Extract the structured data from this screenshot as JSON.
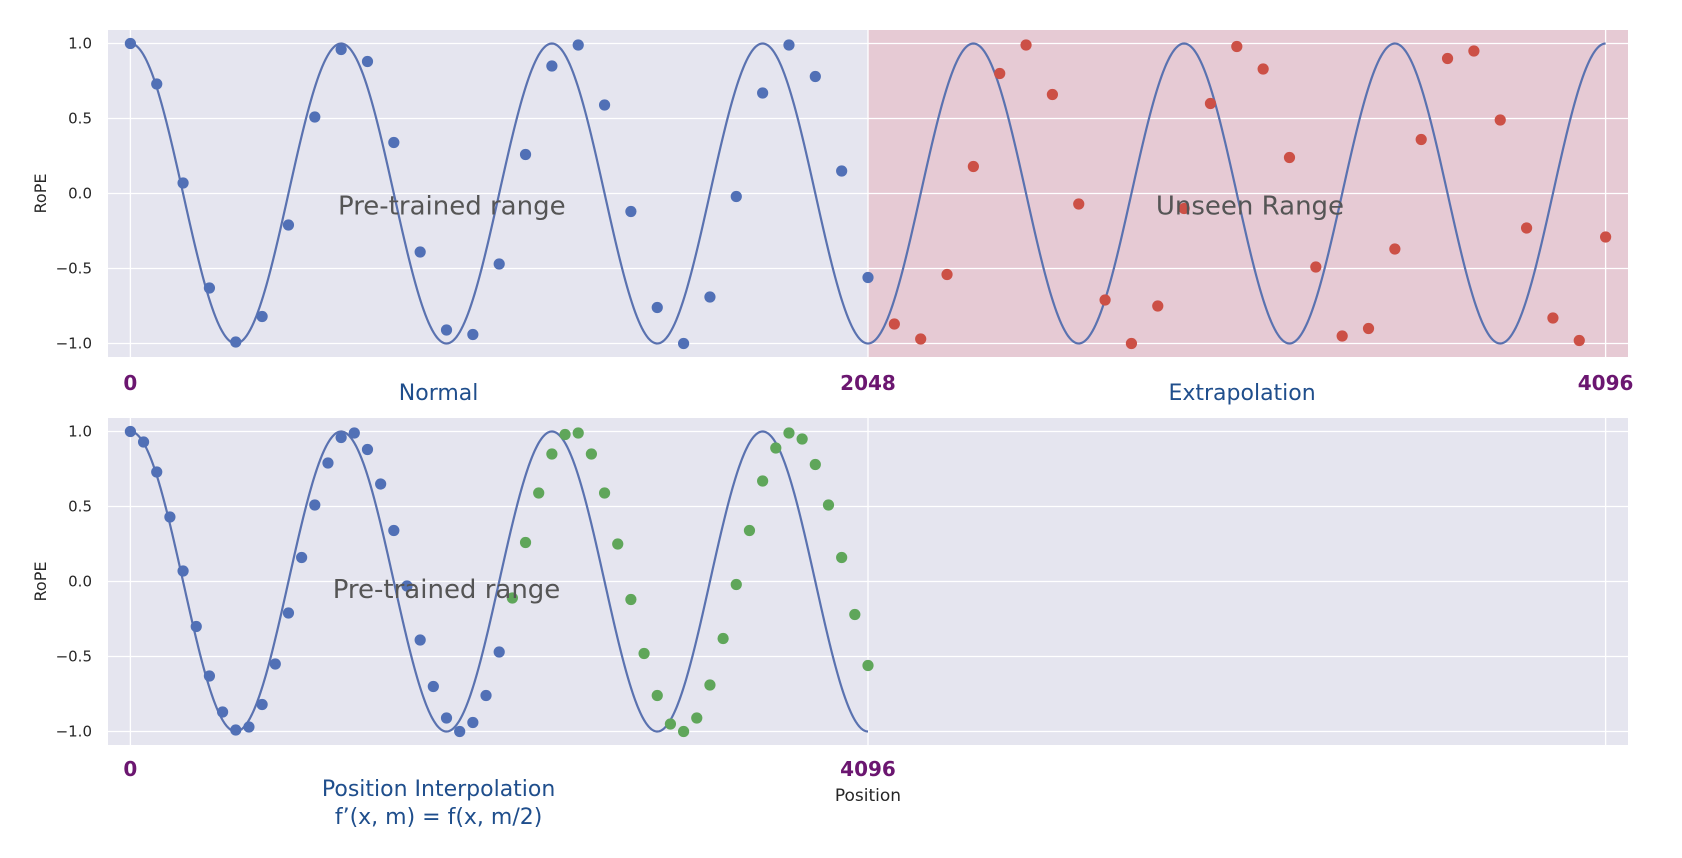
{
  "chart_data": [
    {
      "type": "scatter",
      "title": "",
      "xlabel": "",
      "ylabel": "RoPE",
      "xlim": [
        -0.85,
        56.85
      ],
      "ylim": [
        -1.09,
        1.09
      ],
      "yticks": [
        -1.0,
        -0.5,
        0.0,
        0.5,
        1.0
      ],
      "grid": true,
      "curve": {
        "function": "cos",
        "period": 8,
        "x_range": [
          0,
          56
        ]
      },
      "shaded_region": {
        "x": [
          28,
          56.85
        ],
        "color": "#e8b4bd"
      },
      "series": [
        {
          "color": "#5170b6",
          "x": [
            0,
            1,
            2,
            3,
            4,
            5,
            6,
            7,
            8,
            9,
            10,
            11,
            12,
            13,
            14,
            15,
            16,
            17,
            18,
            19,
            20,
            21,
            22,
            23,
            24,
            25,
            26,
            27,
            28
          ],
          "y": [
            1.0,
            0.73,
            0.07,
            -0.63,
            -0.99,
            -0.82,
            -0.21,
            0.51,
            0.96,
            0.88,
            0.34,
            -0.39,
            -0.91,
            -0.94,
            -0.47,
            0.26,
            0.85,
            0.99,
            0.59,
            -0.12,
            -0.76,
            -1.0,
            -0.69,
            -0.02,
            0.67,
            0.99,
            0.78,
            0.15,
            -0.56
          ]
        },
        {
          "color": "#cc5046",
          "x": [
            29,
            30,
            31,
            32,
            33,
            34,
            35,
            36,
            37,
            38,
            39,
            40,
            41,
            42,
            43,
            44,
            45,
            46,
            47,
            48,
            49,
            50,
            51,
            52,
            53,
            54,
            55,
            56
          ],
          "y": [
            -0.87,
            -0.97,
            -0.54,
            0.18,
            0.8,
            0.99,
            0.66,
            -0.07,
            -0.71,
            -1.0,
            -0.75,
            -0.1,
            0.6,
            0.98,
            0.83,
            0.24,
            -0.49,
            -0.95,
            -0.9,
            -0.37,
            0.36,
            0.9,
            0.95,
            0.49,
            -0.23,
            -0.83,
            -0.98,
            -0.29
          ]
        }
      ],
      "annotations": [
        {
          "text": "Pre-trained range",
          "x": 12.2,
          "y": -0.08
        },
        {
          "text": "Unseen Range",
          "x": 42.5,
          "y": -0.08
        }
      ],
      "position_labels": [
        {
          "text": "0",
          "x": 0
        },
        {
          "text": "2048",
          "x": 28
        },
        {
          "text": "4096",
          "x": 56
        }
      ],
      "region_labels": [
        {
          "lines": [
            "Normal"
          ],
          "x": 11.7
        },
        {
          "lines": [
            "Extrapolation"
          ],
          "x": 42.2
        }
      ]
    },
    {
      "type": "scatter",
      "title": "",
      "xlabel": "Position",
      "ylabel": "RoPE",
      "xlim": [
        -0.85,
        56.85
      ],
      "ylim": [
        -1.09,
        1.09
      ],
      "yticks": [
        -1.0,
        -0.5,
        0.0,
        0.5,
        1.0
      ],
      "grid": true,
      "curve": {
        "function": "cos",
        "period": 8,
        "x_range": [
          0,
          28
        ]
      },
      "series": [
        {
          "color": "#5170b6",
          "x": [
            0,
            0.5,
            1,
            1.5,
            2,
            2.5,
            3,
            3.5,
            4,
            4.5,
            5,
            5.5,
            6,
            6.5,
            7,
            7.5,
            8,
            8.5,
            9,
            9.5,
            10,
            10.5,
            11,
            11.5,
            12,
            12.5,
            13,
            13.5,
            14
          ],
          "y": [
            1.0,
            0.93,
            0.73,
            0.43,
            0.07,
            -0.3,
            -0.63,
            -0.87,
            -0.99,
            -0.97,
            -0.82,
            -0.55,
            -0.21,
            0.16,
            0.51,
            0.79,
            0.96,
            0.99,
            0.88,
            0.65,
            0.34,
            -0.03,
            -0.39,
            -0.7,
            -0.91,
            -1.0,
            -0.94,
            -0.76,
            -0.47
          ]
        },
        {
          "color": "#5fa65a",
          "x": [
            14.5,
            15,
            15.5,
            16,
            16.5,
            17,
            17.5,
            18,
            18.5,
            19,
            19.5,
            20,
            20.5,
            21,
            21.5,
            22,
            22.5,
            23,
            23.5,
            24,
            24.5,
            25,
            25.5,
            26,
            26.5,
            27,
            27.5,
            28
          ],
          "y": [
            -0.11,
            0.26,
            0.59,
            0.85,
            0.98,
            0.99,
            0.85,
            0.59,
            0.25,
            -0.12,
            -0.48,
            -0.76,
            -0.95,
            -1.0,
            -0.91,
            -0.69,
            -0.38,
            -0.02,
            0.34,
            0.67,
            0.89,
            0.99,
            0.95,
            0.78,
            0.51,
            0.16,
            -0.22,
            -0.56
          ]
        }
      ],
      "annotations": [
        {
          "text": "Pre-trained range",
          "x": 12.0,
          "y": -0.05
        }
      ],
      "position_labels": [
        {
          "text": "0",
          "x": 0
        },
        {
          "text": "4096",
          "x": 28
        }
      ],
      "region_labels": [
        {
          "lines": [
            "Position Interpolation",
            "f’(x, m) = f(x, m/2)"
          ],
          "x": 11.7
        }
      ]
    }
  ]
}
